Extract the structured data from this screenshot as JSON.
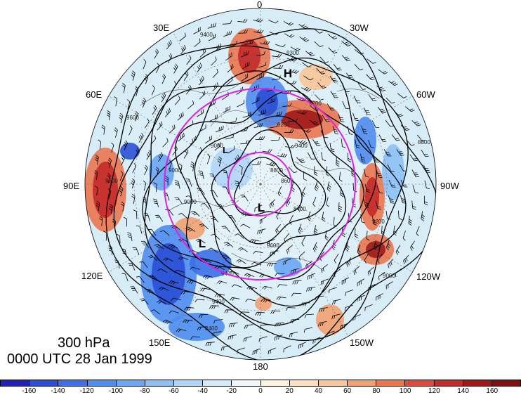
{
  "title": {
    "level": "300 hPa",
    "datetime": "0000 UTC 28 Jan 1999"
  },
  "map": {
    "projection": "north-polar-stereographic",
    "longitude_labels": [
      "0",
      "30W",
      "60W",
      "90W",
      "120W",
      "150W",
      "180",
      "150E",
      "120E",
      "90E",
      "60E",
      "30E"
    ],
    "pressure_centers": [
      "H",
      "L",
      "L",
      "L"
    ],
    "contour_labels": [
      "9400",
      "9300",
      "9200",
      "9400",
      "9200",
      "8800",
      "8600",
      "8400",
      "9000",
      "9000",
      "9000",
      "9400",
      "9600",
      "9200",
      "9000",
      "8800",
      "9400",
      "8400",
      "9600",
      "9600"
    ],
    "ring_color": "#e020e0"
  },
  "colorbar": {
    "labels": [
      "-160",
      "-140",
      "-120",
      "-100",
      "-80",
      "-60",
      "-40",
      "-20",
      "0",
      "20",
      "40",
      "60",
      "80",
      "100",
      "120",
      "140",
      "160"
    ],
    "colors": [
      "#2222b8",
      "#2a4fd6",
      "#3a6fe8",
      "#4e8cf0",
      "#6aa6f4",
      "#8cc0f6",
      "#b0d6f8",
      "#d4eafa",
      "#eef7fc",
      "#fdf3e0",
      "#fce0c0",
      "#f8c69a",
      "#f2a070",
      "#ea7650",
      "#dc4a3a",
      "#c42a2a",
      "#a01818",
      "#801010"
    ]
  }
}
